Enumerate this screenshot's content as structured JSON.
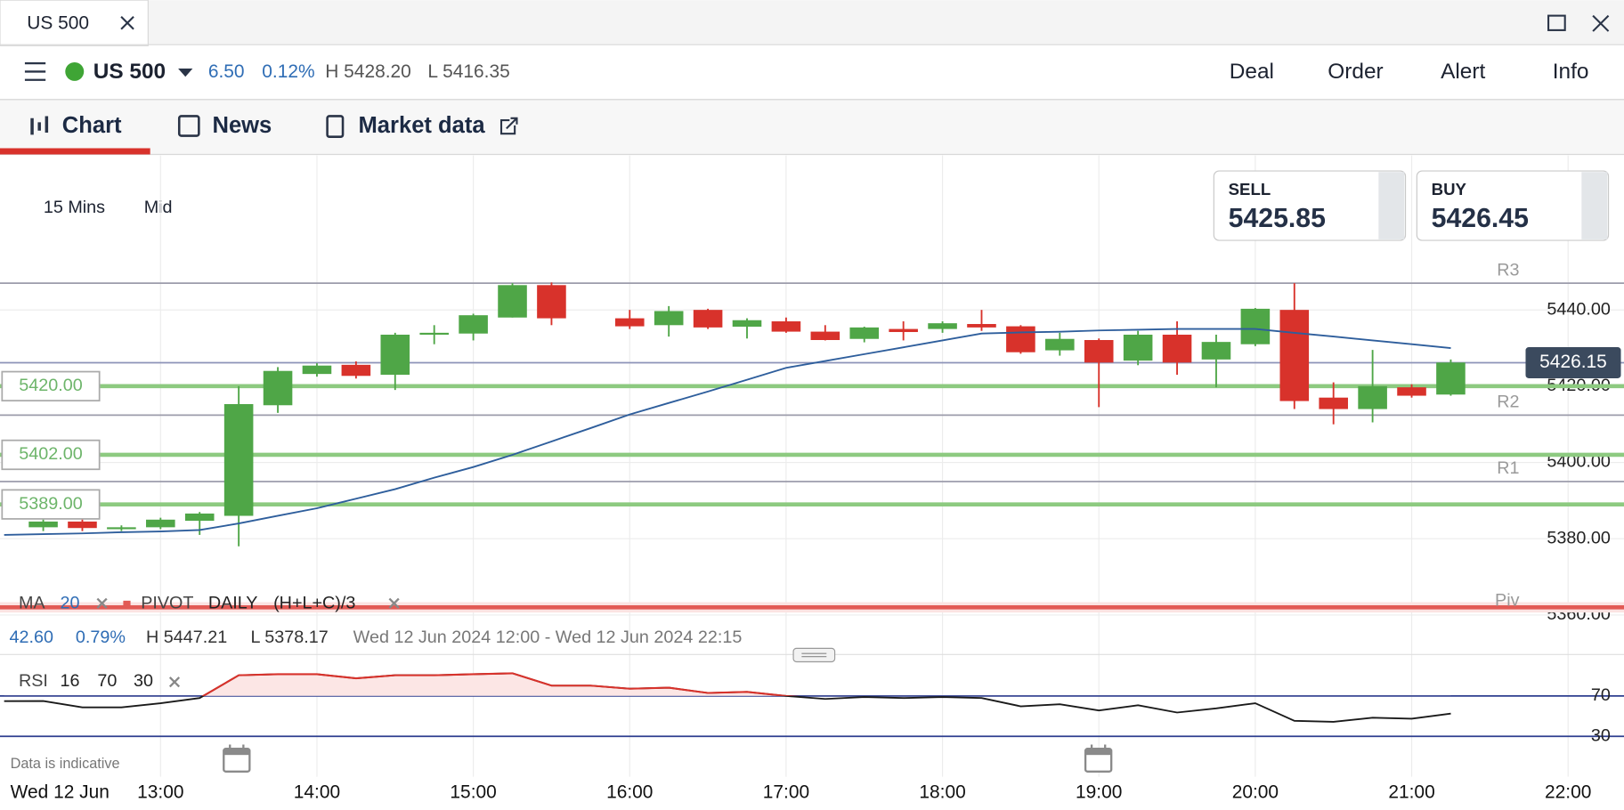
{
  "tab": {
    "title": "US 500"
  },
  "header": {
    "instrument": "US 500",
    "change": "6.50",
    "change_pct": "0.12%",
    "high": "H 5428.20",
    "low": "L 5416.35",
    "actions": [
      "Deal",
      "Order",
      "Alert",
      "Info"
    ]
  },
  "nav": [
    "Chart",
    "News",
    "Market data"
  ],
  "toolbar": {
    "interval": "15 Mins",
    "price_type": "Mid"
  },
  "quotes": [
    {
      "label": "SELL",
      "price": "5425.85"
    },
    {
      "label": "BUY",
      "price": "5426.45"
    }
  ],
  "chart_data": {
    "type": "candlestick",
    "colors": {
      "up": "#4fa647",
      "down": "#d8322b",
      "ma": "#2e5e9c",
      "level": "#8dca80",
      "pivot": "#9c9cab",
      "pivot_main": "#e25a55"
    },
    "ylim": [
      5357.5,
      5480.5
    ],
    "yticks": [
      {
        "value": 5440,
        "label": "5440.00"
      },
      {
        "value": 5420,
        "label": "5420.00"
      },
      {
        "value": 5400,
        "label": "5400.00"
      },
      {
        "value": 5380,
        "label": "5380.00"
      },
      {
        "value": 5360,
        "label": "5360.00"
      }
    ],
    "xticks": [
      "13:00",
      "14:00",
      "15:00",
      "16:00",
      "17:00",
      "18:00",
      "19:00",
      "20:00",
      "21:00",
      "22:00"
    ],
    "date_label": "Wed 12 Jun",
    "grid": true,
    "open": [
      null,
      5383,
      5384.5,
      5382.5,
      5383,
      5384.7,
      5386,
      5415,
      5423.2,
      5425.6,
      5423,
      5433.5,
      5433.8,
      5438,
      5446.5,
      null,
      5437.8,
      5436,
      5440,
      5435.6,
      5437,
      5434.3,
      5432.4,
      5435,
      5435,
      5436.3,
      5435.7,
      5429.4,
      5432.1,
      5426.7,
      5433.5,
      5427,
      5431,
      5440,
      5417,
      5414,
      5419.7,
      5417.8
    ],
    "high": [
      null,
      5385,
      5385,
      5383.5,
      5385.5,
      5387,
      5420,
      5425,
      5426,
      5426.5,
      5434,
      5436,
      5439,
      5447,
      5447.2,
      null,
      5440,
      5441,
      5440.3,
      5437.8,
      5438,
      5436,
      5435.6,
      5437,
      5437,
      5440,
      5436,
      5434,
      5432.5,
      5434.5,
      5437,
      5433.5,
      5440.5,
      5447,
      5421,
      5429.5,
      5420.5,
      5427
    ],
    "low": [
      null,
      5382,
      5382,
      5382,
      5382.5,
      5381,
      5378,
      5413,
      5422.5,
      5422,
      5419,
      5431,
      5432,
      5438,
      5436,
      null,
      5435,
      5433,
      5435,
      5432.5,
      5434,
      5432,
      5431.5,
      5432,
      5434,
      5434.5,
      5428.5,
      5428,
      5414.5,
      5425.5,
      5423,
      5419.7,
      5430.5,
      5414,
      5410,
      5410.5,
      5417,
      5417.5
    ],
    "close": [
      null,
      5384.5,
      5382.8,
      5383,
      5385,
      5386.6,
      5415.3,
      5424,
      5425.4,
      5422.7,
      5433.5,
      5434,
      5438.6,
      5446.5,
      5437.8,
      null,
      5435.7,
      5439.7,
      5435.4,
      5437.3,
      5434.3,
      5432.1,
      5435.4,
      5434.2,
      5436.5,
      5435.4,
      5428.9,
      5432.4,
      5426.2,
      5433.5,
      5426.2,
      5431.6,
      5440.3,
      5416.1,
      5414,
      5420,
      5417.5,
      5426.2
    ],
    "ma": {
      "name": "MA",
      "period": 20,
      "values": [
        5381,
        5381.2,
        5381.4,
        5381.7,
        5381.9,
        5382.3,
        5384,
        5386,
        5388,
        5390.5,
        5393,
        5396,
        5398.8,
        5402,
        5405.5,
        5409,
        5412.6,
        5415.6,
        5418.6,
        5421.7,
        5424.8,
        5426.6,
        5428.4,
        5430.2,
        5432,
        5433.8,
        5434.1,
        5434.3,
        5434.6,
        5434.8,
        5435,
        5435,
        5435,
        5434,
        5433,
        5432,
        5431,
        5430
      ]
    },
    "current_price": 5426.15,
    "levels": [
      {
        "value": 5420,
        "label": "5420.00"
      },
      {
        "value": 5402,
        "label": "5402.00"
      },
      {
        "value": 5389,
        "label": "5389.00"
      }
    ],
    "pivot": {
      "name": "PIVOT",
      "period": "DAILY",
      "formula": "(H+L+C)/3",
      "lines": [
        {
          "name": "R3",
          "value": 5447
        },
        {
          "name": "R2",
          "value": 5412.4
        },
        {
          "name": "R1",
          "value": 5395
        },
        {
          "name": "Piv",
          "value": 5362
        }
      ]
    },
    "stats": {
      "change": "42.60",
      "change_pct": "0.79%",
      "high": "H 5447.21",
      "low": "L 5378.17",
      "range": "Wed 12 Jun 2024 12:00 - Wed 12 Jun 2024 22:15"
    },
    "rsi": {
      "name": "RSI",
      "params": [
        16,
        70,
        30
      ],
      "ylim": [
        0,
        100
      ],
      "yticks": [
        70,
        30
      ],
      "color": "#1a1a1a",
      "over_color": "#d8322b",
      "band_color": "#2e3f8f",
      "values": [
        64.9,
        65,
        58.7,
        58.7,
        62.8,
        68,
        90.5,
        91.5,
        91.5,
        87.4,
        90.5,
        90.5,
        91.5,
        92.5,
        80.3,
        80.3,
        77.2,
        78.2,
        73,
        74,
        70,
        67,
        69,
        68,
        69,
        68,
        59.7,
        61.8,
        55.6,
        60.8,
        53.6,
        57.7,
        62.8,
        45.4,
        44.4,
        48.5,
        47.4,
        52.6
      ]
    },
    "note": "Data is indicative"
  }
}
